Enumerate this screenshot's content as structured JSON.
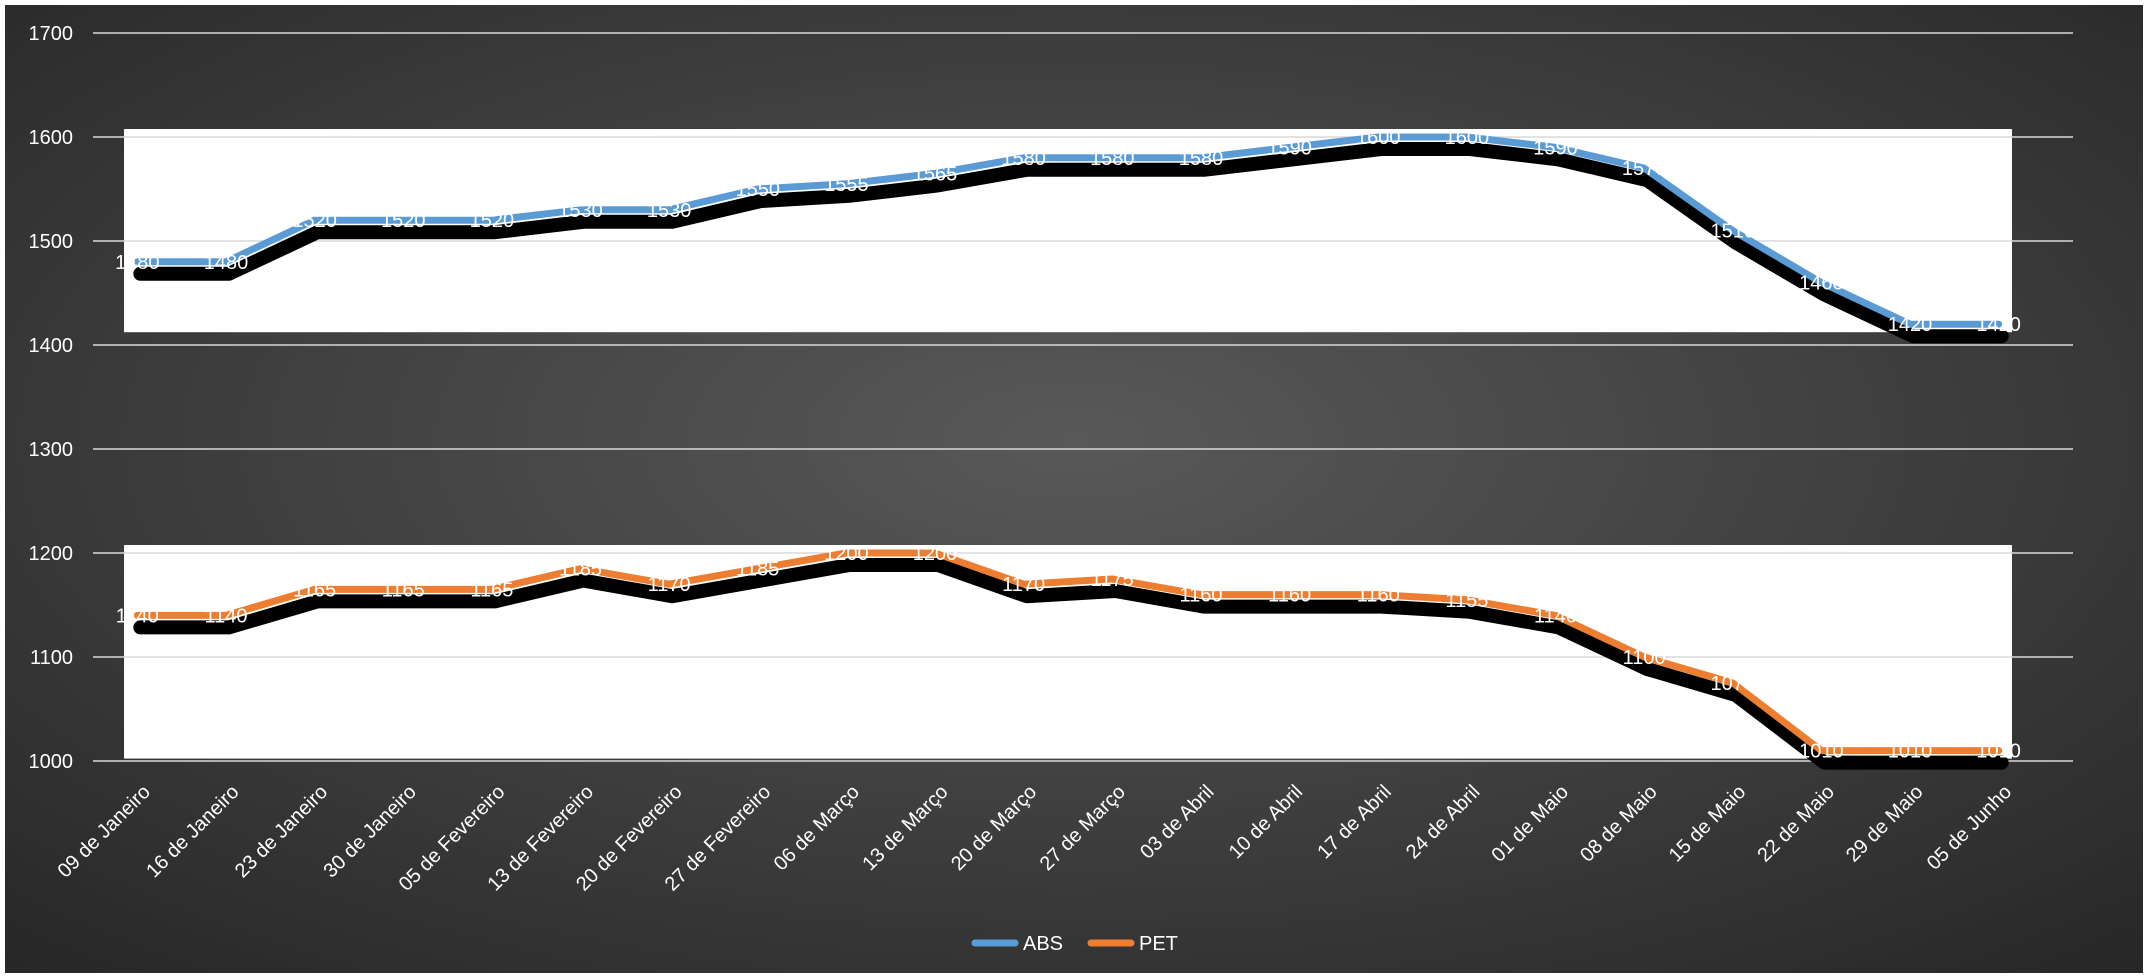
{
  "chart_data": {
    "type": "line",
    "title": "",
    "xlabel": "",
    "ylabel": "",
    "ylim": [
      1000,
      1700
    ],
    "yticks": [
      1000,
      1100,
      1200,
      1300,
      1400,
      1500,
      1600,
      1700
    ],
    "grid": true,
    "legend_position": "bottom",
    "background": "dark-radial-gradient",
    "categories": [
      "09 de Janeiro",
      "16 de Janeiro",
      "23 de Janeiro",
      "30 de Janeiro",
      "05 de Fevereiro",
      "13 de Fevereiro",
      "20 de Fevereiro",
      "27 de Fevereiro",
      "06 de Março",
      "13 de Março",
      "20 de Março",
      "27 de Março",
      "03 de Abril",
      "10 de Abril",
      "17 de Abril",
      "24 de Abril",
      "01 de Maio",
      "08 de Maio",
      "15 de Maio",
      "22 de Maio",
      "29 de Maio",
      "05 de Junho"
    ],
    "series": [
      {
        "name": "ABS",
        "color": "#5b9bd5",
        "values": [
          1480,
          1480,
          1520,
          1520,
          1520,
          1530,
          1530,
          1550,
          1555,
          1565,
          1580,
          1580,
          1580,
          1590,
          1600,
          1600,
          1590,
          1570,
          1510,
          1460,
          1420,
          1420
        ]
      },
      {
        "name": "PET",
        "color": "#ed7d31",
        "values": [
          1140,
          1140,
          1165,
          1165,
          1165,
          1185,
          1170,
          1185,
          1200,
          1200,
          1170,
          1175,
          1160,
          1160,
          1160,
          1155,
          1140,
          1100,
          1075,
          1010,
          1010,
          1010
        ]
      }
    ]
  }
}
